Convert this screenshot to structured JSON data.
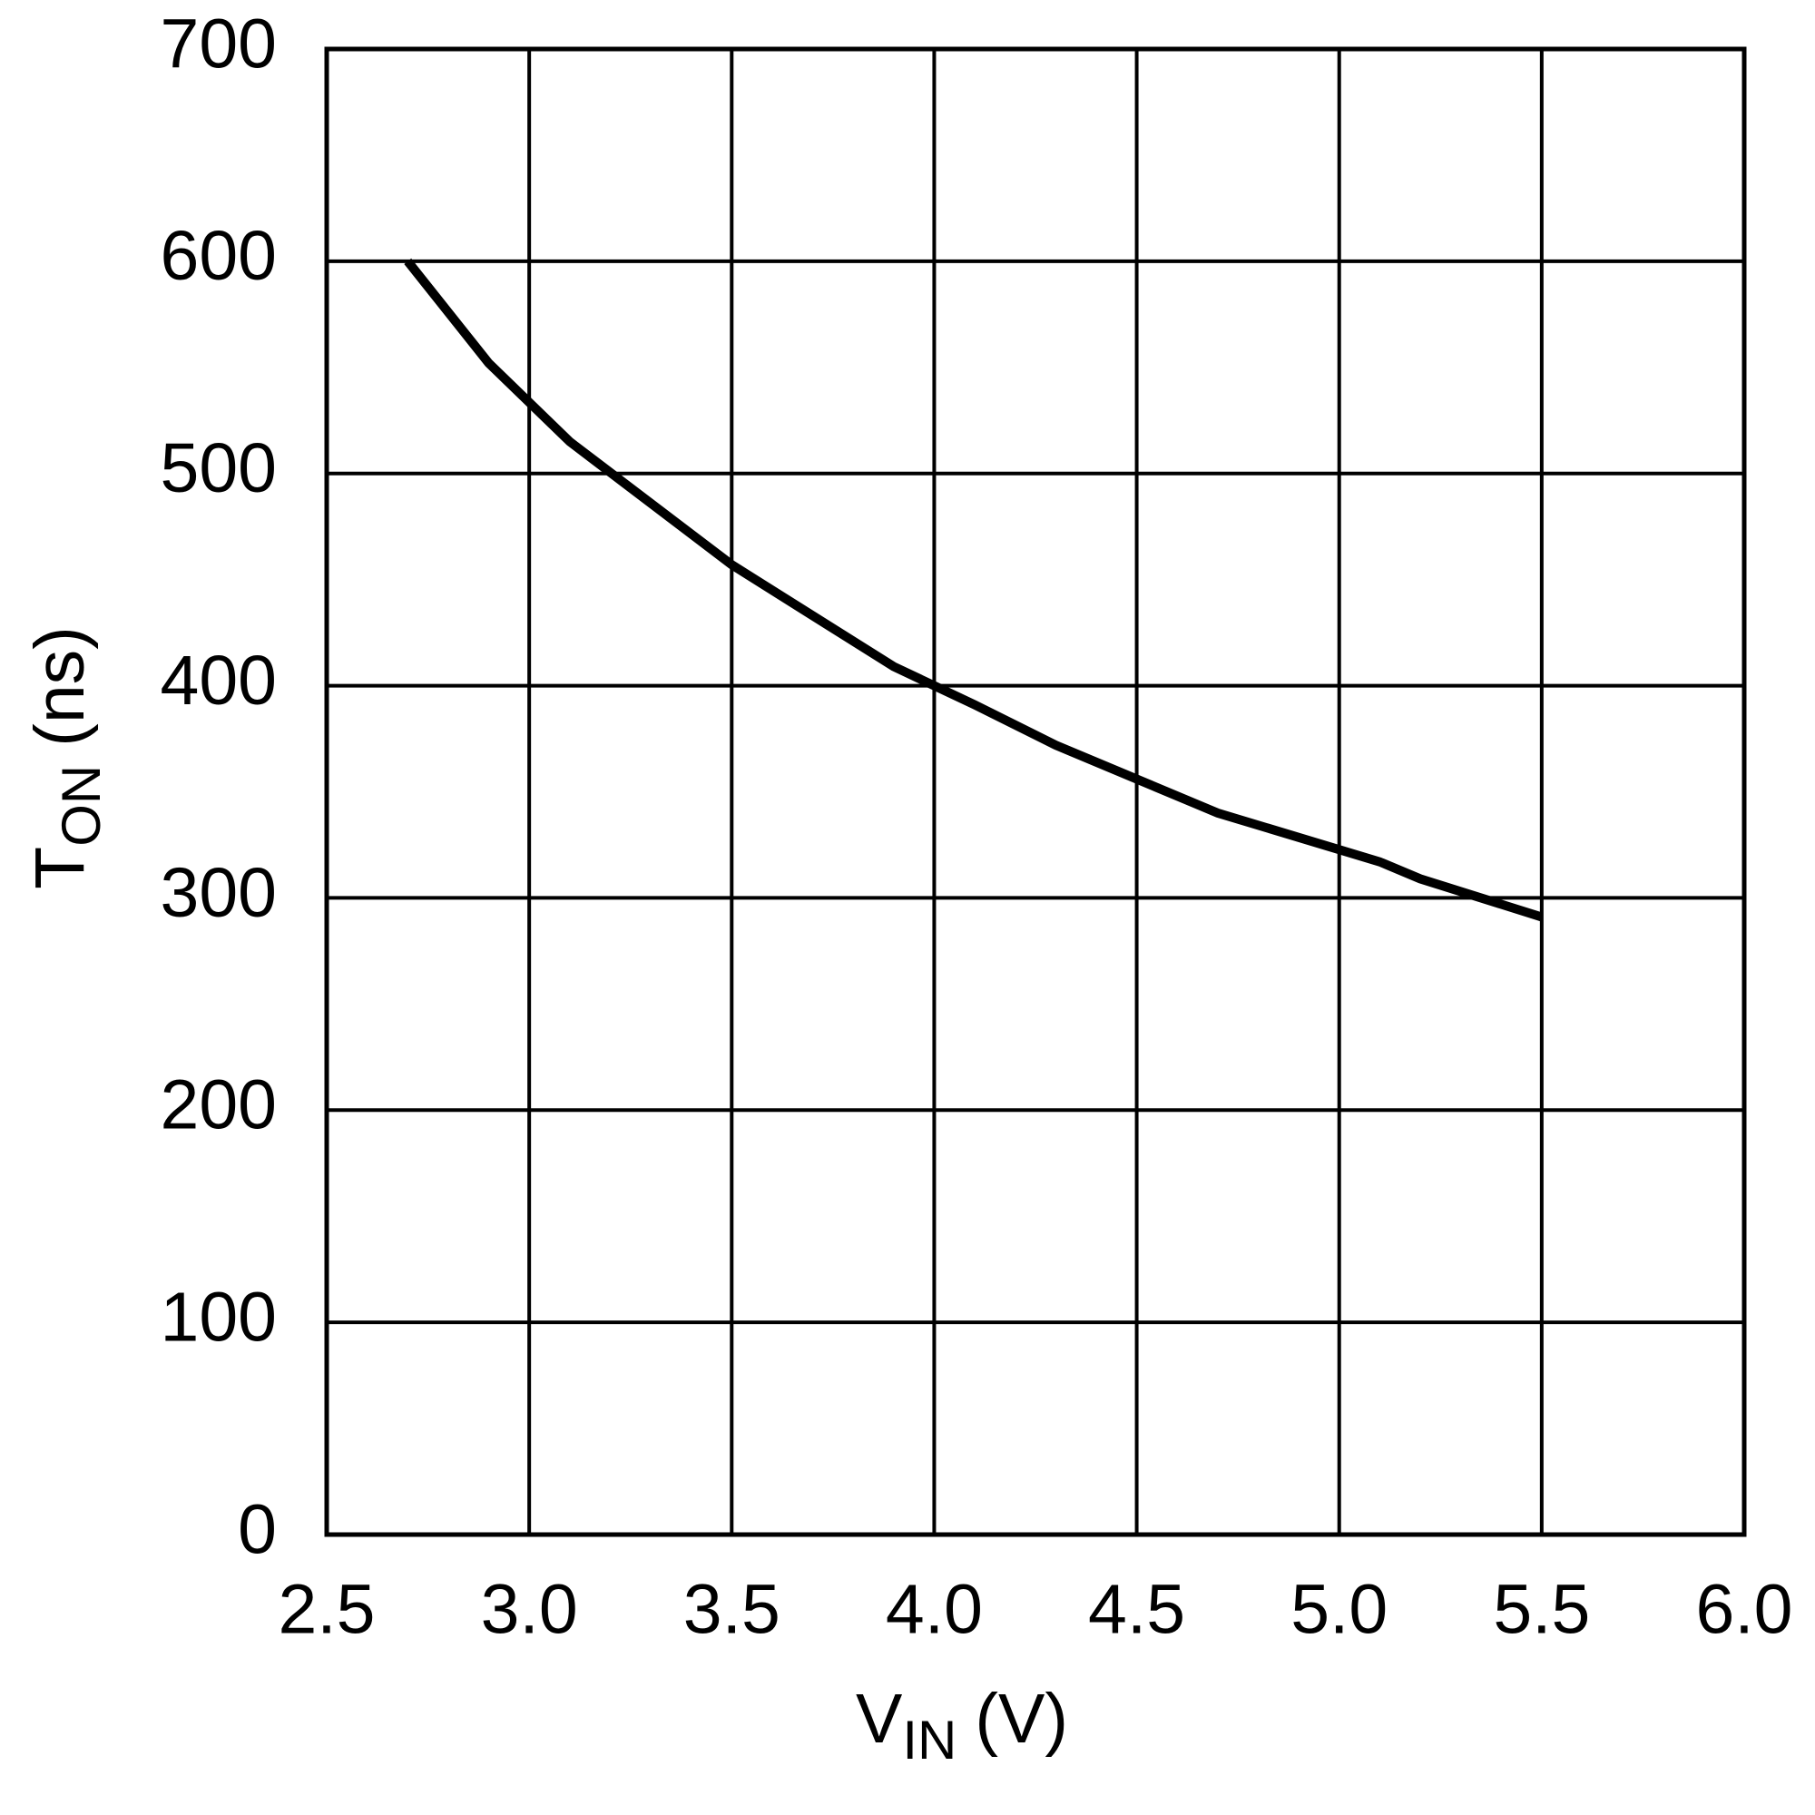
{
  "chart_data": {
    "type": "line",
    "x_label": {
      "main": "V",
      "sub": "IN",
      "unit": "(V)"
    },
    "y_label": {
      "main": "T",
      "sub": "ON",
      "unit": "(ns)"
    },
    "x": [
      2.7,
      2.9,
      3.1,
      3.5,
      3.9,
      4.1,
      4.3,
      4.7,
      5.1,
      5.2,
      5.5
    ],
    "series": [
      {
        "color": "#000000",
        "values": [
          600,
          552,
          515,
          457,
          409,
          391,
          372,
          340,
          317,
          309,
          291
        ]
      }
    ],
    "xlim": [
      2.5,
      6
    ],
    "ylim": [
      0,
      700
    ],
    "xticks": [
      2.5,
      {
        "value": 3,
        "label": "3.0"
      },
      3.5,
      {
        "value": 4,
        "label": "4.0"
      },
      4.5,
      {
        "value": 5,
        "label": "5.0"
      },
      5.5,
      {
        "value": 6,
        "label": "6.0"
      }
    ],
    "yticks": [
      0,
      100,
      200,
      300,
      400,
      500,
      600,
      700
    ],
    "grid": true
  }
}
